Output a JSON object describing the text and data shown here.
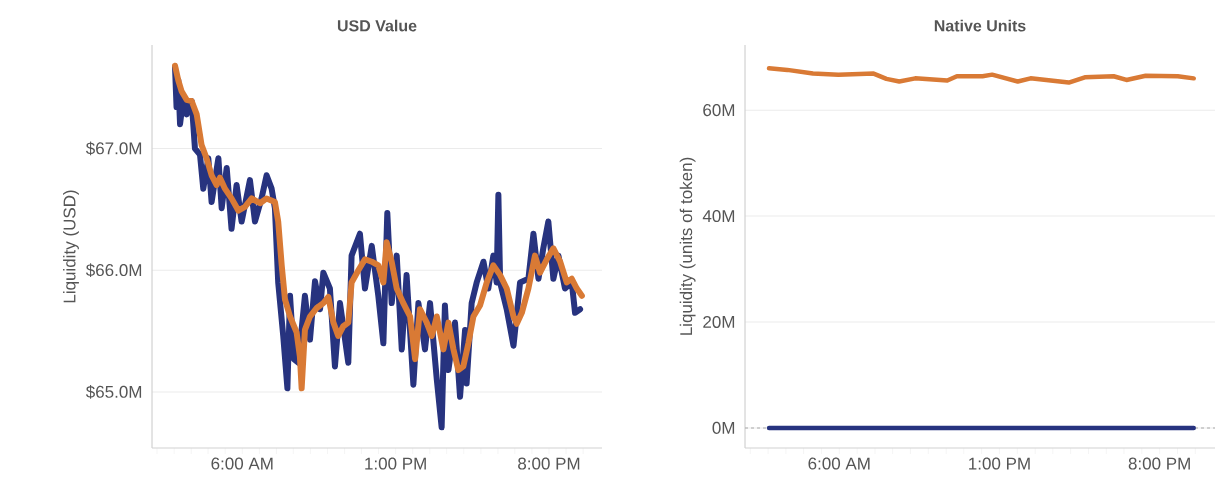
{
  "chart_data": [
    {
      "type": "line",
      "title": "USD Value",
      "ylabel": "Liquidity (USD)",
      "xlim": [
        1.88,
        22.42
      ],
      "ylim": [
        64.54,
        67.85
      ],
      "grid": "y",
      "xticks": [
        {
          "value": 2.11,
          "label": null
        },
        {
          "value": 2.89,
          "label": null
        },
        {
          "value": 3.67,
          "label": null
        },
        {
          "value": 4.44,
          "label": null
        },
        {
          "value": 5.22,
          "label": null
        },
        {
          "value": 6,
          "label": "6:00 AM"
        },
        {
          "value": 6.78,
          "label": null
        },
        {
          "value": 7.56,
          "label": null
        },
        {
          "value": 8.33,
          "label": null
        },
        {
          "value": 9.11,
          "label": null
        },
        {
          "value": 9.89,
          "label": null
        },
        {
          "value": 10.67,
          "label": null
        },
        {
          "value": 11.44,
          "label": null
        },
        {
          "value": 12.22,
          "label": null
        },
        {
          "value": 13,
          "label": "1:00 PM"
        },
        {
          "value": 13.78,
          "label": null
        },
        {
          "value": 14.56,
          "label": null
        },
        {
          "value": 15.33,
          "label": null
        },
        {
          "value": 16.11,
          "label": null
        },
        {
          "value": 16.89,
          "label": null
        },
        {
          "value": 17.67,
          "label": null
        },
        {
          "value": 18.44,
          "label": null
        },
        {
          "value": 19.22,
          "label": null
        },
        {
          "value": 20,
          "label": "8:00 PM"
        },
        {
          "value": 20.78,
          "label": null
        },
        {
          "value": 21.56,
          "label": null
        }
      ],
      "yticks": [
        {
          "value": 65,
          "label": "$65.0M"
        },
        {
          "value": 66,
          "label": "$66.0M"
        },
        {
          "value": 67,
          "label": "$67.0M"
        }
      ],
      "series": [
        {
          "color": "#27337f",
          "x": [
            2.93,
            3.0,
            3.08,
            3.16,
            3.31,
            3.46,
            3.69,
            3.84,
            4.07,
            4.22,
            4.45,
            4.6,
            4.91,
            5.06,
            5.29,
            5.51,
            5.74,
            5.97,
            6.35,
            6.58,
            6.88,
            7.11,
            7.34,
            7.49,
            7.64,
            7.87,
            8.06,
            8.18,
            8.36,
            8.56,
            8.86,
            9.09,
            9.32,
            9.55,
            9.7,
            10.0,
            10.23,
            10.46,
            10.84,
            10.99,
            11.37,
            11.6,
            11.91,
            12.21,
            12.44,
            12.62,
            12.82,
            13.05,
            13.28,
            13.5,
            13.81,
            14.04,
            14.34,
            14.57,
            14.88,
            15.1,
            15.25,
            15.41,
            15.71,
            15.94,
            16.17,
            16.24,
            16.47,
            16.7,
            17.01,
            17.23,
            17.46,
            17.61,
            17.69,
            17.77,
            18.07,
            18.38,
            18.68,
            19.06,
            19.29,
            19.52,
            19.74,
            19.97,
            20.2,
            20.43,
            20.73,
            21.04,
            21.19,
            21.42
          ],
          "values": [
            67.67,
            67.34,
            67.56,
            67.2,
            67.42,
            67.28,
            67.39,
            67.0,
            66.95,
            66.67,
            66.92,
            66.56,
            66.92,
            66.51,
            66.84,
            66.34,
            66.7,
            66.4,
            66.74,
            66.4,
            66.59,
            66.78,
            66.67,
            66.51,
            65.9,
            65.46,
            65.03,
            65.79,
            65.27,
            65.24,
            65.79,
            65.43,
            65.91,
            65.68,
            65.98,
            65.85,
            65.21,
            65.73,
            65.24,
            66.12,
            66.3,
            65.85,
            66.2,
            65.79,
            65.4,
            66.47,
            65.73,
            66.12,
            65.35,
            65.96,
            65.06,
            65.73,
            65.35,
            65.73,
            65.1,
            64.71,
            65.71,
            65.18,
            65.57,
            64.96,
            65.51,
            65.07,
            65.73,
            65.9,
            66.07,
            65.85,
            66.12,
            65.9,
            66.62,
            65.9,
            65.68,
            65.38,
            65.9,
            65.93,
            66.3,
            65.93,
            66.18,
            66.4,
            65.93,
            66.12,
            65.85,
            65.9,
            65.65,
            65.68
          ]
        },
        {
          "color": "#d97a35",
          "x": [
            2.93,
            3.08,
            3.23,
            3.46,
            3.69,
            3.92,
            4.14,
            4.37,
            4.6,
            4.83,
            4.98,
            5.21,
            5.51,
            5.82,
            6.12,
            6.43,
            6.81,
            7.11,
            7.49,
            7.64,
            7.8,
            7.95,
            8.18,
            8.48,
            8.63,
            8.71,
            8.86,
            9.09,
            9.4,
            9.7,
            9.93,
            10.16,
            10.38,
            10.61,
            10.84,
            10.99,
            11.3,
            11.6,
            11.91,
            12.21,
            12.44,
            12.59,
            12.82,
            13.05,
            13.35,
            13.66,
            13.89,
            14.11,
            14.42,
            14.65,
            14.88,
            15.18,
            15.41,
            15.64,
            15.86,
            16.09,
            16.32,
            16.55,
            16.85,
            17.16,
            17.46,
            17.77,
            18.07,
            18.38,
            18.53,
            18.76,
            19.06,
            19.36,
            19.59,
            19.9,
            20.2,
            20.51,
            20.81,
            21.04,
            21.27,
            21.5
          ],
          "values": [
            67.68,
            67.56,
            67.47,
            67.4,
            67.39,
            67.28,
            67.03,
            66.92,
            66.78,
            66.7,
            66.76,
            66.67,
            66.59,
            66.49,
            66.52,
            66.59,
            66.55,
            66.59,
            66.56,
            66.4,
            66.04,
            65.76,
            65.62,
            65.49,
            65.29,
            65.03,
            65.51,
            65.62,
            65.69,
            65.73,
            65.78,
            65.57,
            65.46,
            65.54,
            65.57,
            65.9,
            66.0,
            66.09,
            66.07,
            66.04,
            65.9,
            66.23,
            66.07,
            65.85,
            65.73,
            65.62,
            65.27,
            65.68,
            65.57,
            65.46,
            65.62,
            65.35,
            65.57,
            65.35,
            65.18,
            65.21,
            65.4,
            65.62,
            65.71,
            65.9,
            66.04,
            65.96,
            65.85,
            65.62,
            65.56,
            65.65,
            65.85,
            66.12,
            65.98,
            66.09,
            66.18,
            66.07,
            65.9,
            65.93,
            65.85,
            65.79
          ]
        }
      ]
    },
    {
      "type": "line",
      "title": "Native Units",
      "ylabel": "Liquidity (units of token)",
      "xlim": [
        1.88,
        22.42
      ],
      "ylim": [
        -3.8,
        72.3
      ],
      "grid": "y",
      "xticks": [
        {
          "value": 2.11,
          "label": null
        },
        {
          "value": 2.89,
          "label": null
        },
        {
          "value": 3.67,
          "label": null
        },
        {
          "value": 4.44,
          "label": null
        },
        {
          "value": 5.22,
          "label": null
        },
        {
          "value": 6,
          "label": "6:00 AM"
        },
        {
          "value": 6.78,
          "label": null
        },
        {
          "value": 7.56,
          "label": null
        },
        {
          "value": 8.33,
          "label": null
        },
        {
          "value": 9.11,
          "label": null
        },
        {
          "value": 9.89,
          "label": null
        },
        {
          "value": 10.67,
          "label": null
        },
        {
          "value": 11.44,
          "label": null
        },
        {
          "value": 12.22,
          "label": null
        },
        {
          "value": 13,
          "label": "1:00 PM"
        },
        {
          "value": 13.78,
          "label": null
        },
        {
          "value": 14.56,
          "label": null
        },
        {
          "value": 15.33,
          "label": null
        },
        {
          "value": 16.11,
          "label": null
        },
        {
          "value": 16.89,
          "label": null
        },
        {
          "value": 17.67,
          "label": null
        },
        {
          "value": 18.44,
          "label": null
        },
        {
          "value": 19.22,
          "label": null
        },
        {
          "value": 20,
          "label": "8:00 PM"
        },
        {
          "value": 20.78,
          "label": null
        },
        {
          "value": 21.56,
          "label": null
        }
      ],
      "yticks": [
        {
          "value": 0,
          "label": "0M"
        },
        {
          "value": 20,
          "label": "20M"
        },
        {
          "value": 40,
          "label": "40M"
        },
        {
          "value": 60,
          "label": "60M"
        }
      ],
      "ref_lines": [
        {
          "axis": "y",
          "value": 0,
          "color": "#aaaaaa",
          "line_style": "dashed"
        }
      ],
      "series": [
        {
          "color": "#d97a35",
          "x": [
            2.93,
            3.73,
            4.85,
            5.96,
            7.5,
            8.06,
            8.62,
            9.32,
            10.72,
            11.14,
            12.26,
            12.68,
            13.8,
            14.36,
            16.03,
            16.73,
            17.99,
            18.55,
            19.39,
            20.79,
            21.49
          ],
          "values": [
            67.9,
            67.6,
            66.9,
            66.7,
            66.9,
            65.9,
            65.4,
            66.0,
            65.6,
            66.4,
            66.4,
            66.7,
            65.4,
            66.0,
            65.2,
            66.2,
            66.4,
            65.7,
            66.5,
            66.4,
            66.0
          ]
        },
        {
          "color": "#27337f",
          "x": [
            2.93,
            12.2,
            21.49
          ],
          "values": [
            0,
            0,
            0
          ]
        }
      ]
    }
  ]
}
